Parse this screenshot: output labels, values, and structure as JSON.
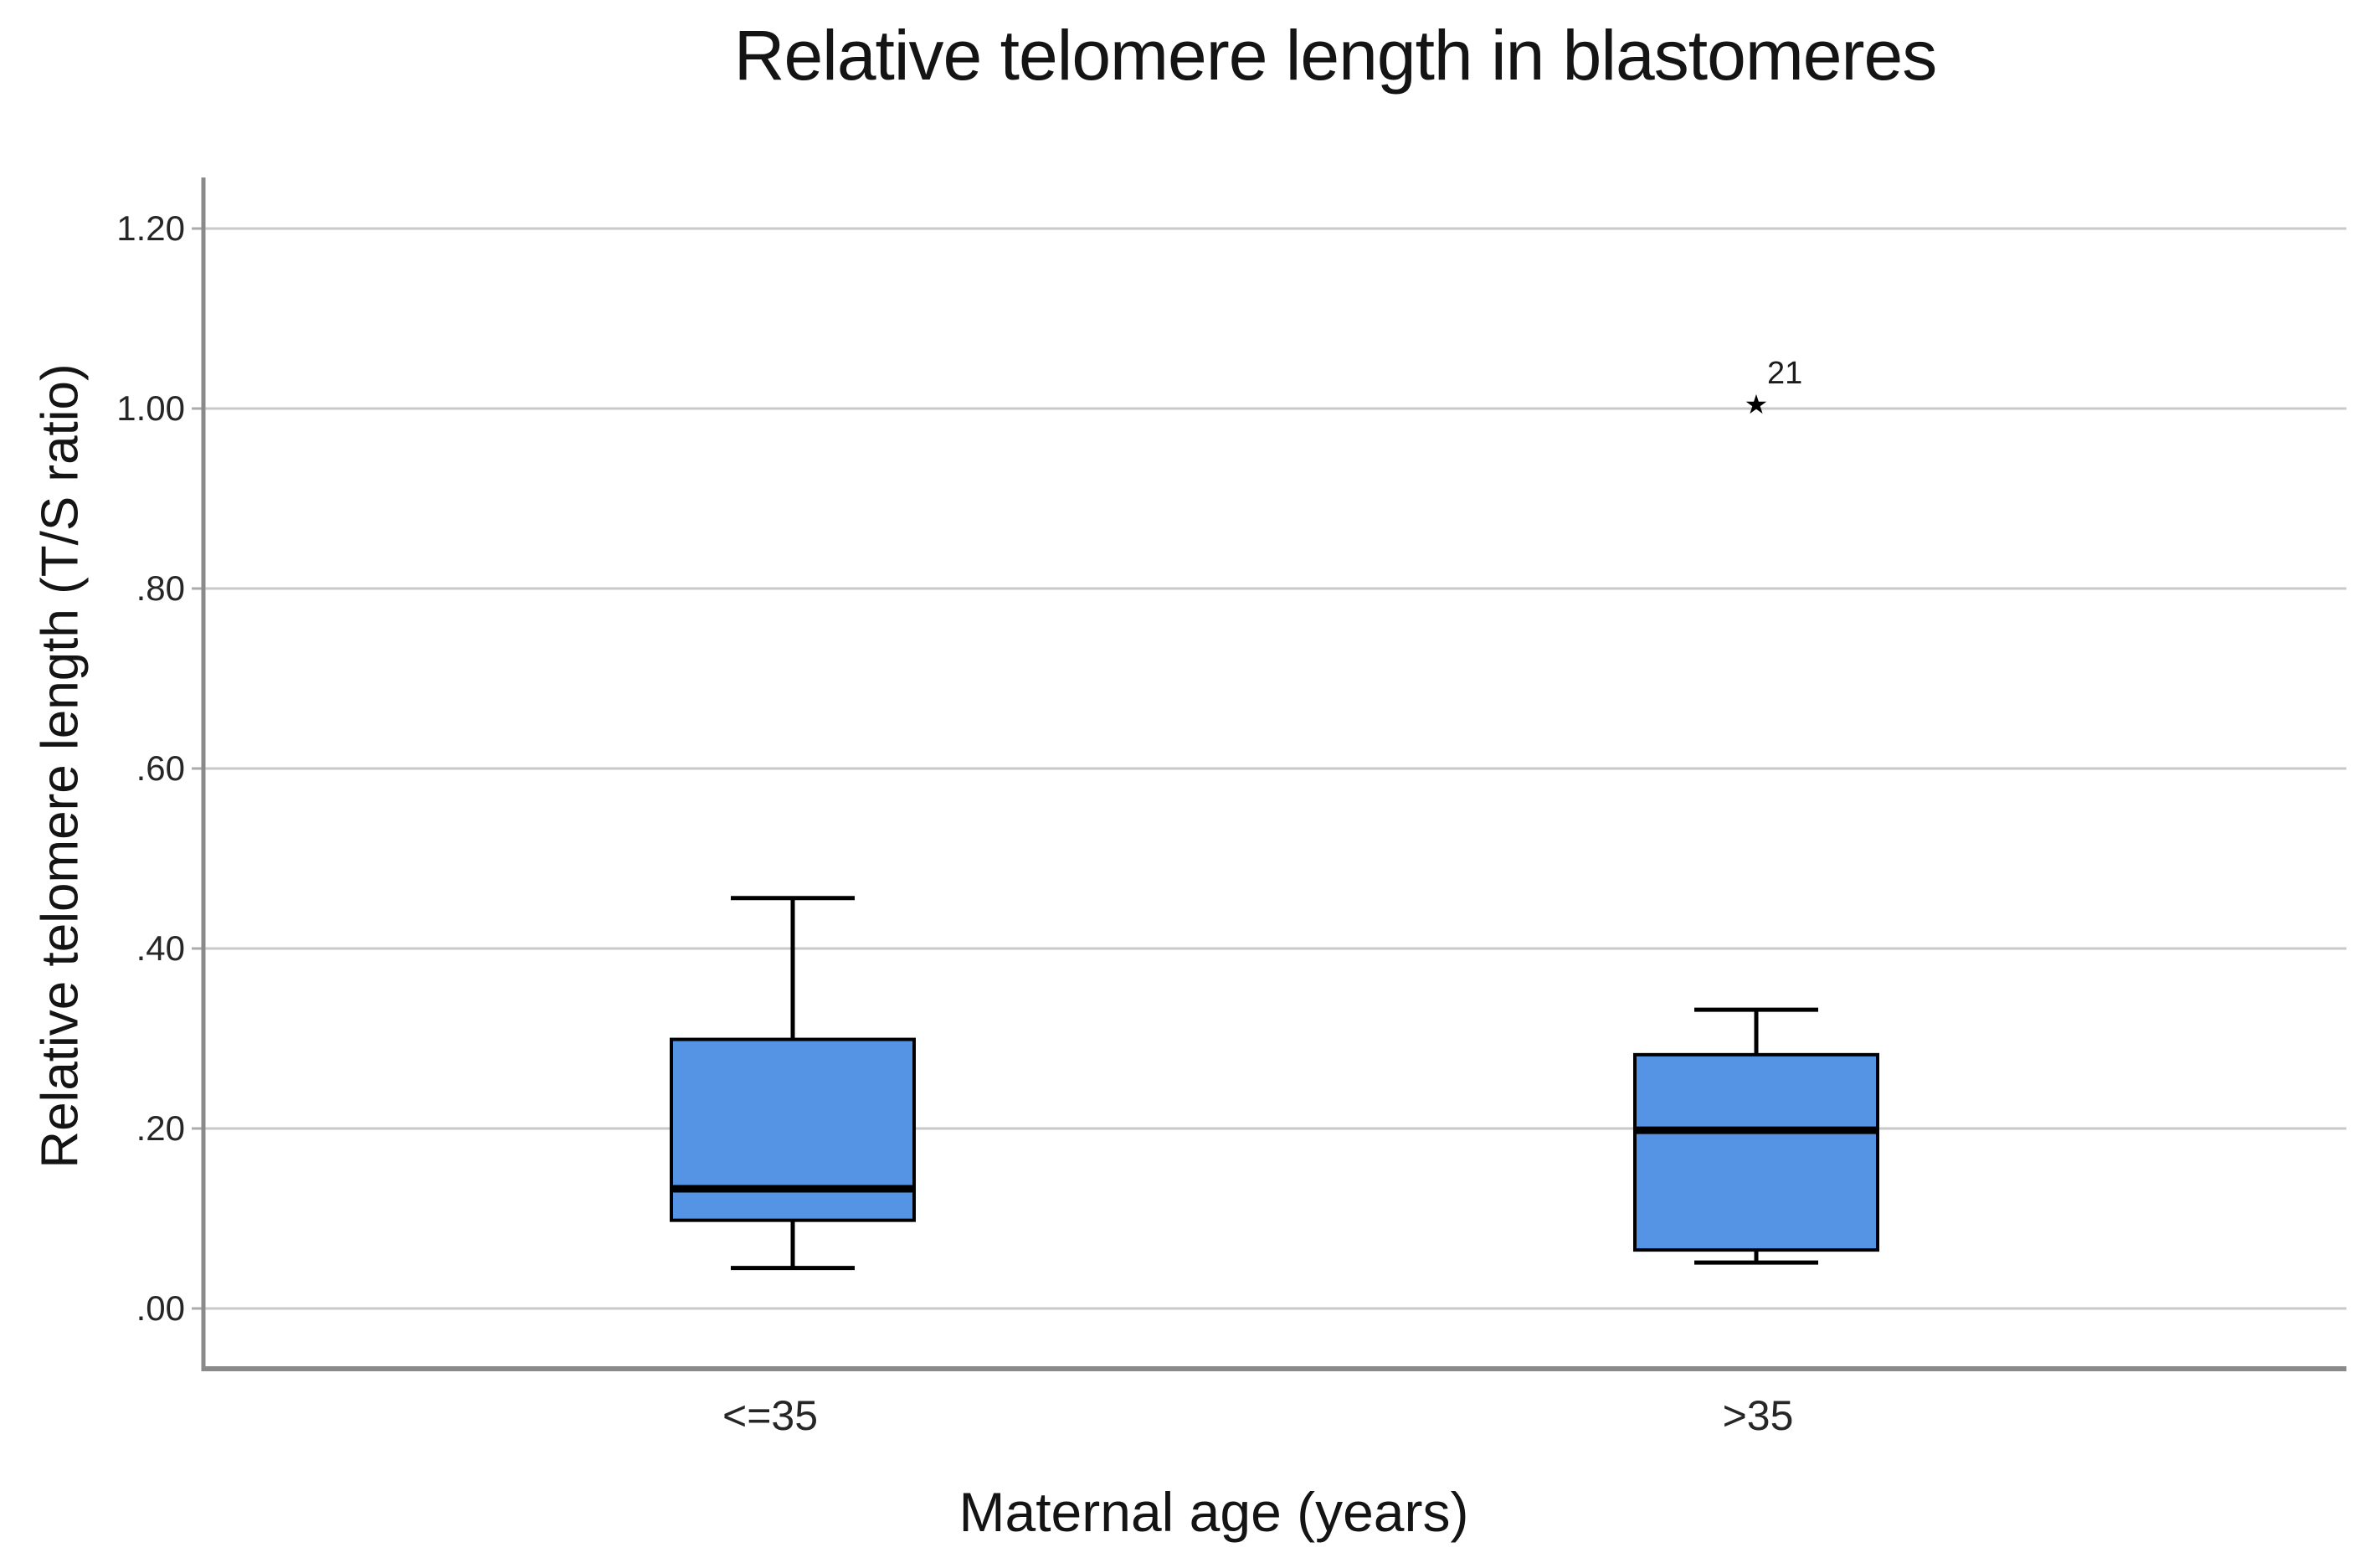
{
  "figure": {
    "title": "Relative telomere length in blastomeres",
    "x_axis_title": "Maternal age (years)",
    "y_axis_title": "Relative telomere length (T/S ratio)"
  },
  "chart_data": {
    "type": "boxplot",
    "title": "Relative telomere length in blastomeres",
    "xlabel": "Maternal age (years)",
    "ylabel": "Relative telomere length (T/S ratio)",
    "categories": [
      "<=35",
      ">35"
    ],
    "y_ticks": {
      "values": [
        0.0,
        0.2,
        0.4,
        0.6,
        0.8,
        1.0,
        1.2
      ],
      "labels": [
        ".00",
        ".20",
        ".40",
        ".60",
        ".80",
        "1.00",
        "1.20"
      ]
    },
    "ylim": [
      -0.067,
      1.257
    ],
    "grid": "horizontal-gridlines",
    "legend": "none",
    "series": [
      {
        "category": "<=35",
        "whisker_low": 0.045,
        "q1": 0.098,
        "median": 0.133,
        "q3": 0.299,
        "whisker_high": 0.456,
        "outliers": []
      },
      {
        "category": ">35",
        "whisker_low": 0.051,
        "q1": 0.065,
        "median": 0.198,
        "q3": 0.282,
        "whisker_high": 0.332,
        "outliers": [
          {
            "value": 1.005,
            "label": "21",
            "marker": "extreme-asterisk"
          }
        ]
      }
    ],
    "colors": {
      "box_fill": "#5593E4",
      "box_border": "#000000",
      "median_line": "#000000",
      "whisker": "#000000",
      "gridline": "#C9C9C9",
      "tick_mark": "#ABABAB",
      "axis_line": "#8A8A8A",
      "text": "#1C1C1C"
    },
    "outlier_marker_glyph": "★"
  }
}
